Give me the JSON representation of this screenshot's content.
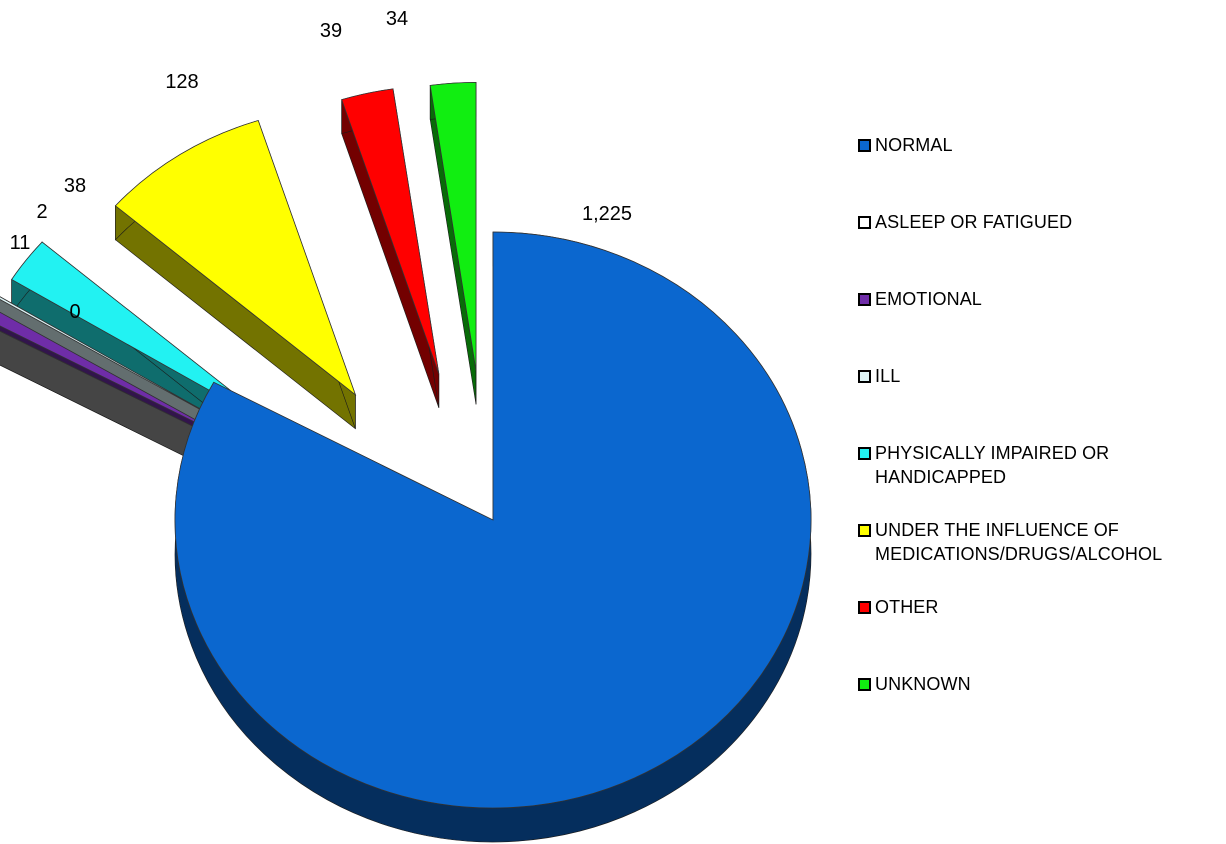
{
  "chart_data": {
    "type": "pie",
    "title": "",
    "style": "3d-exploded",
    "legend_position": "right",
    "slices": [
      {
        "name": "NORMAL",
        "value": 1225,
        "label": "1,225",
        "color": "#0B67CF"
      },
      {
        "name": "ASLEEP OR FATIGUED",
        "value": 0,
        "label": "0",
        "color": "#FFFFFF"
      },
      {
        "name": "EMOTIONAL",
        "value": 11,
        "label": "11",
        "color": "#6F2DA8"
      },
      {
        "name": "ILL",
        "value": 2,
        "label": "2",
        "color": "#DDF4F6"
      },
      {
        "name": "PHYSICALLY IMPAIRED OR\nHANDICAPPED",
        "value": 38,
        "label": "38",
        "color": "#22F2F2"
      },
      {
        "name": "UNDER THE INFLUENCE OF\nMEDICATIONS/DRUGS/ALCOHOL",
        "value": 128,
        "label": "128",
        "color": "#FFFF00"
      },
      {
        "name": "OTHER",
        "value": 39,
        "label": "39",
        "color": "#FF0000"
      },
      {
        "name": "UNKNOWN",
        "value": 34,
        "label": "34",
        "color": "#11EE11"
      }
    ]
  }
}
